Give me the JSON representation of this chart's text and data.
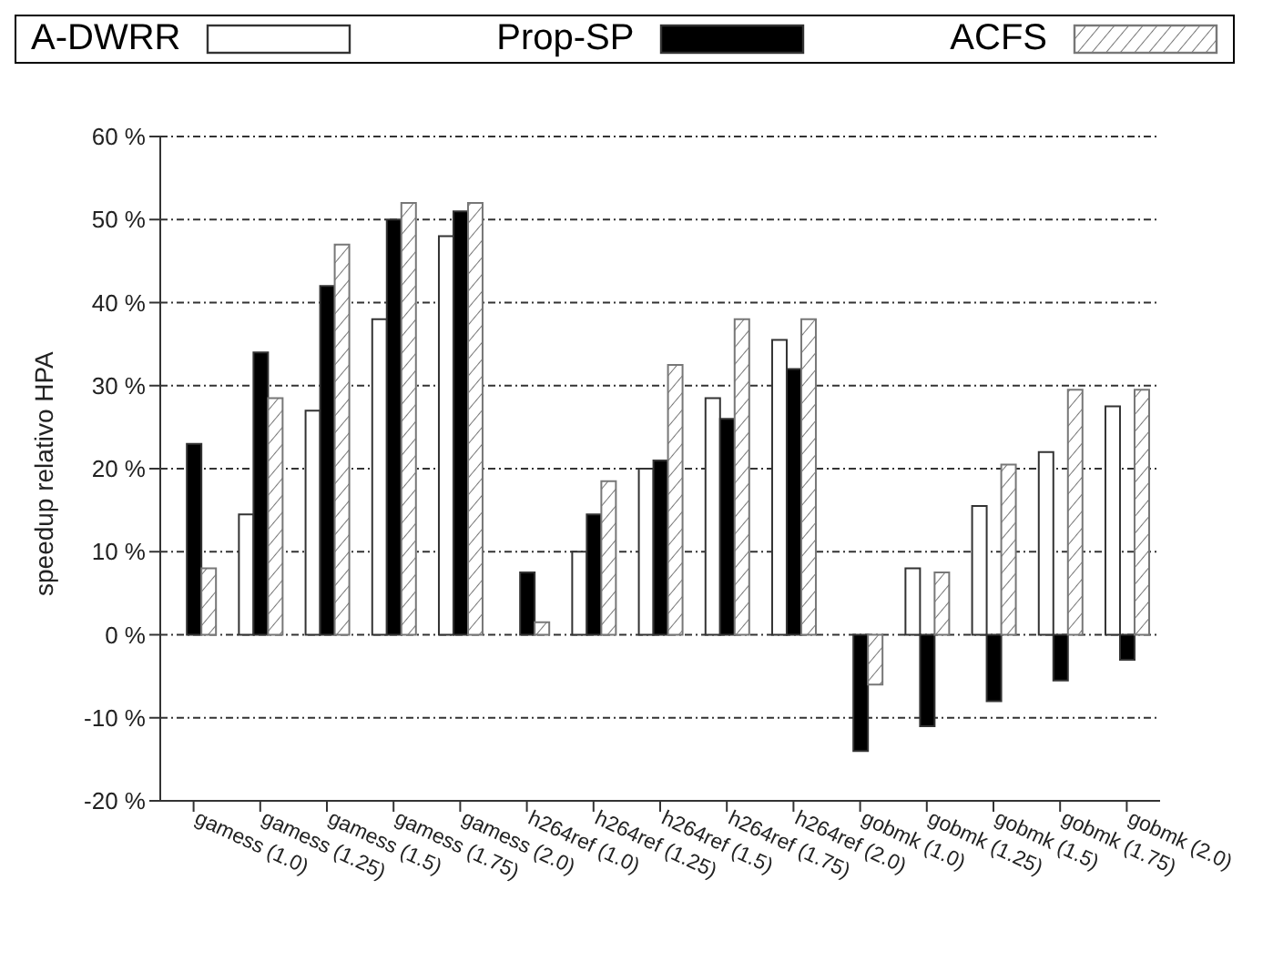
{
  "chart_data": {
    "type": "bar",
    "ylabel": "speedup relativo HPA",
    "categories": [
      "gamess (1.0)",
      "gamess (1.25)",
      "gamess (1.5)",
      "gamess (1.75)",
      "gamess (2.0)",
      "h264ref (1.0)",
      "h264ref (1.25)",
      "h264ref (1.5)",
      "h264ref (1.75)",
      "h264ref (2.0)",
      "gobmk (1.0)",
      "gobmk (1.25)",
      "gobmk (1.5)",
      "gobmk (1.75)",
      "gobmk (2.0)"
    ],
    "series": [
      {
        "name": "A-DWRR",
        "color": "#ffffff",
        "values": [
          null,
          14.5,
          27,
          38,
          48,
          null,
          10,
          20,
          28.5,
          35.5,
          null,
          8,
          15.5,
          22,
          27.5
        ]
      },
      {
        "name": "Prop-SP",
        "color": "#000000",
        "values": [
          23,
          34,
          42,
          50,
          51,
          7.5,
          14.5,
          21,
          26,
          32,
          -14,
          -11,
          -8,
          -5.5,
          -3
        ]
      },
      {
        "name": "ACFS",
        "color": "#777777",
        "values": [
          8,
          28.5,
          47,
          52,
          52,
          1.5,
          18.5,
          32.5,
          38,
          38,
          -6,
          7.5,
          20.5,
          29.5,
          29.5
        ]
      }
    ],
    "ylim": [
      -20,
      60
    ],
    "yticks": [
      {
        "value": -20,
        "label": "-20 %"
      },
      {
        "value": -10,
        "label": "-10 %"
      },
      {
        "value": 0,
        "label": "0 %"
      },
      {
        "value": 10,
        "label": "10 %"
      },
      {
        "value": 20,
        "label": "20 %"
      },
      {
        "value": 30,
        "label": "30 %"
      },
      {
        "value": 40,
        "label": "40 %"
      },
      {
        "value": 50,
        "label": "50 %"
      },
      {
        "value": 60,
        "label": "60 %"
      }
    ],
    "grid": "y",
    "legend": "top"
  }
}
